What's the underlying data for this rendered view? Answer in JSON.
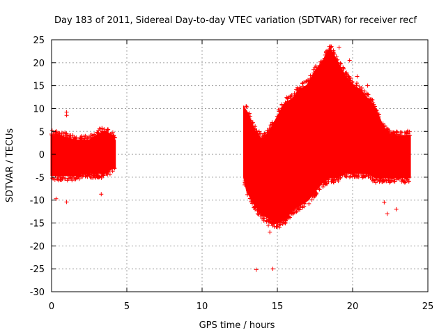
{
  "chart_data": {
    "type": "scatter",
    "title": "Day 183 of 2011, Sidereal Day-to-day VTEC variation (SDTVAR) for receiver recf",
    "xlabel": "GPS time / hours",
    "ylabel": "SDTVAR / TECUs",
    "xlim": [
      0,
      25
    ],
    "ylim": [
      -30,
      25
    ],
    "xticks": [
      0,
      5,
      10,
      15,
      20,
      25
    ],
    "yticks": [
      -30,
      -25,
      -20,
      -15,
      -10,
      -5,
      0,
      5,
      10,
      15,
      20,
      25
    ],
    "grid": true,
    "marker": "+",
    "series_color": "#ff0000",
    "series": [
      {
        "name": "SDTVAR",
        "envelope_x": [
          0.0,
          0.5,
          1.0,
          1.5,
          2.0,
          2.5,
          3.0,
          3.5,
          4.0,
          4.2,
          12.8,
          13.0,
          13.5,
          14.0,
          14.5,
          15.0,
          15.5,
          16.0,
          16.5,
          17.0,
          17.5,
          18.0,
          18.5,
          19.0,
          19.5,
          20.0,
          20.5,
          21.0,
          21.5,
          22.0,
          22.5,
          23.0,
          23.5,
          23.8
        ],
        "envelope_upper": [
          4,
          4,
          3.5,
          3,
          3,
          3,
          4,
          5,
          4,
          3,
          10,
          9,
          5,
          3,
          5,
          8,
          11,
          12,
          14,
          15,
          18,
          20,
          23,
          20,
          17,
          15,
          14,
          12,
          10,
          6,
          4,
          4,
          4,
          4
        ],
        "envelope_lower": [
          -4.5,
          -4.5,
          -4.5,
          -4.5,
          -4,
          -4,
          -4,
          -4,
          -3,
          -3,
          -5,
          -8,
          -11,
          -13,
          -14,
          -15,
          -14,
          -12,
          -11,
          -10,
          -8,
          -6,
          -5,
          -5,
          -4,
          -4,
          -4,
          -4,
          -5,
          -5,
          -5,
          -5,
          -5,
          -5
        ],
        "outliers": [
          [
            0.3,
            -9.7
          ],
          [
            1.0,
            9.2
          ],
          [
            1.0,
            8.5
          ],
          [
            1.1,
            -5.3
          ],
          [
            1.0,
            -10.4
          ],
          [
            3.3,
            -8.7
          ],
          [
            13.6,
            -25.2
          ],
          [
            14.7,
            -25.0
          ],
          [
            14.1,
            -14.5
          ],
          [
            14.5,
            -17.0
          ],
          [
            14.4,
            -15.5
          ],
          [
            13.9,
            -11.5
          ],
          [
            18.3,
            22.6
          ],
          [
            19.8,
            20.5
          ],
          [
            19.1,
            23.3
          ],
          [
            22.9,
            -12.0
          ],
          [
            22.3,
            -13.0
          ],
          [
            22.1,
            -10.5
          ],
          [
            20.3,
            17.0
          ],
          [
            21.0,
            15.0
          ]
        ]
      }
    ]
  }
}
